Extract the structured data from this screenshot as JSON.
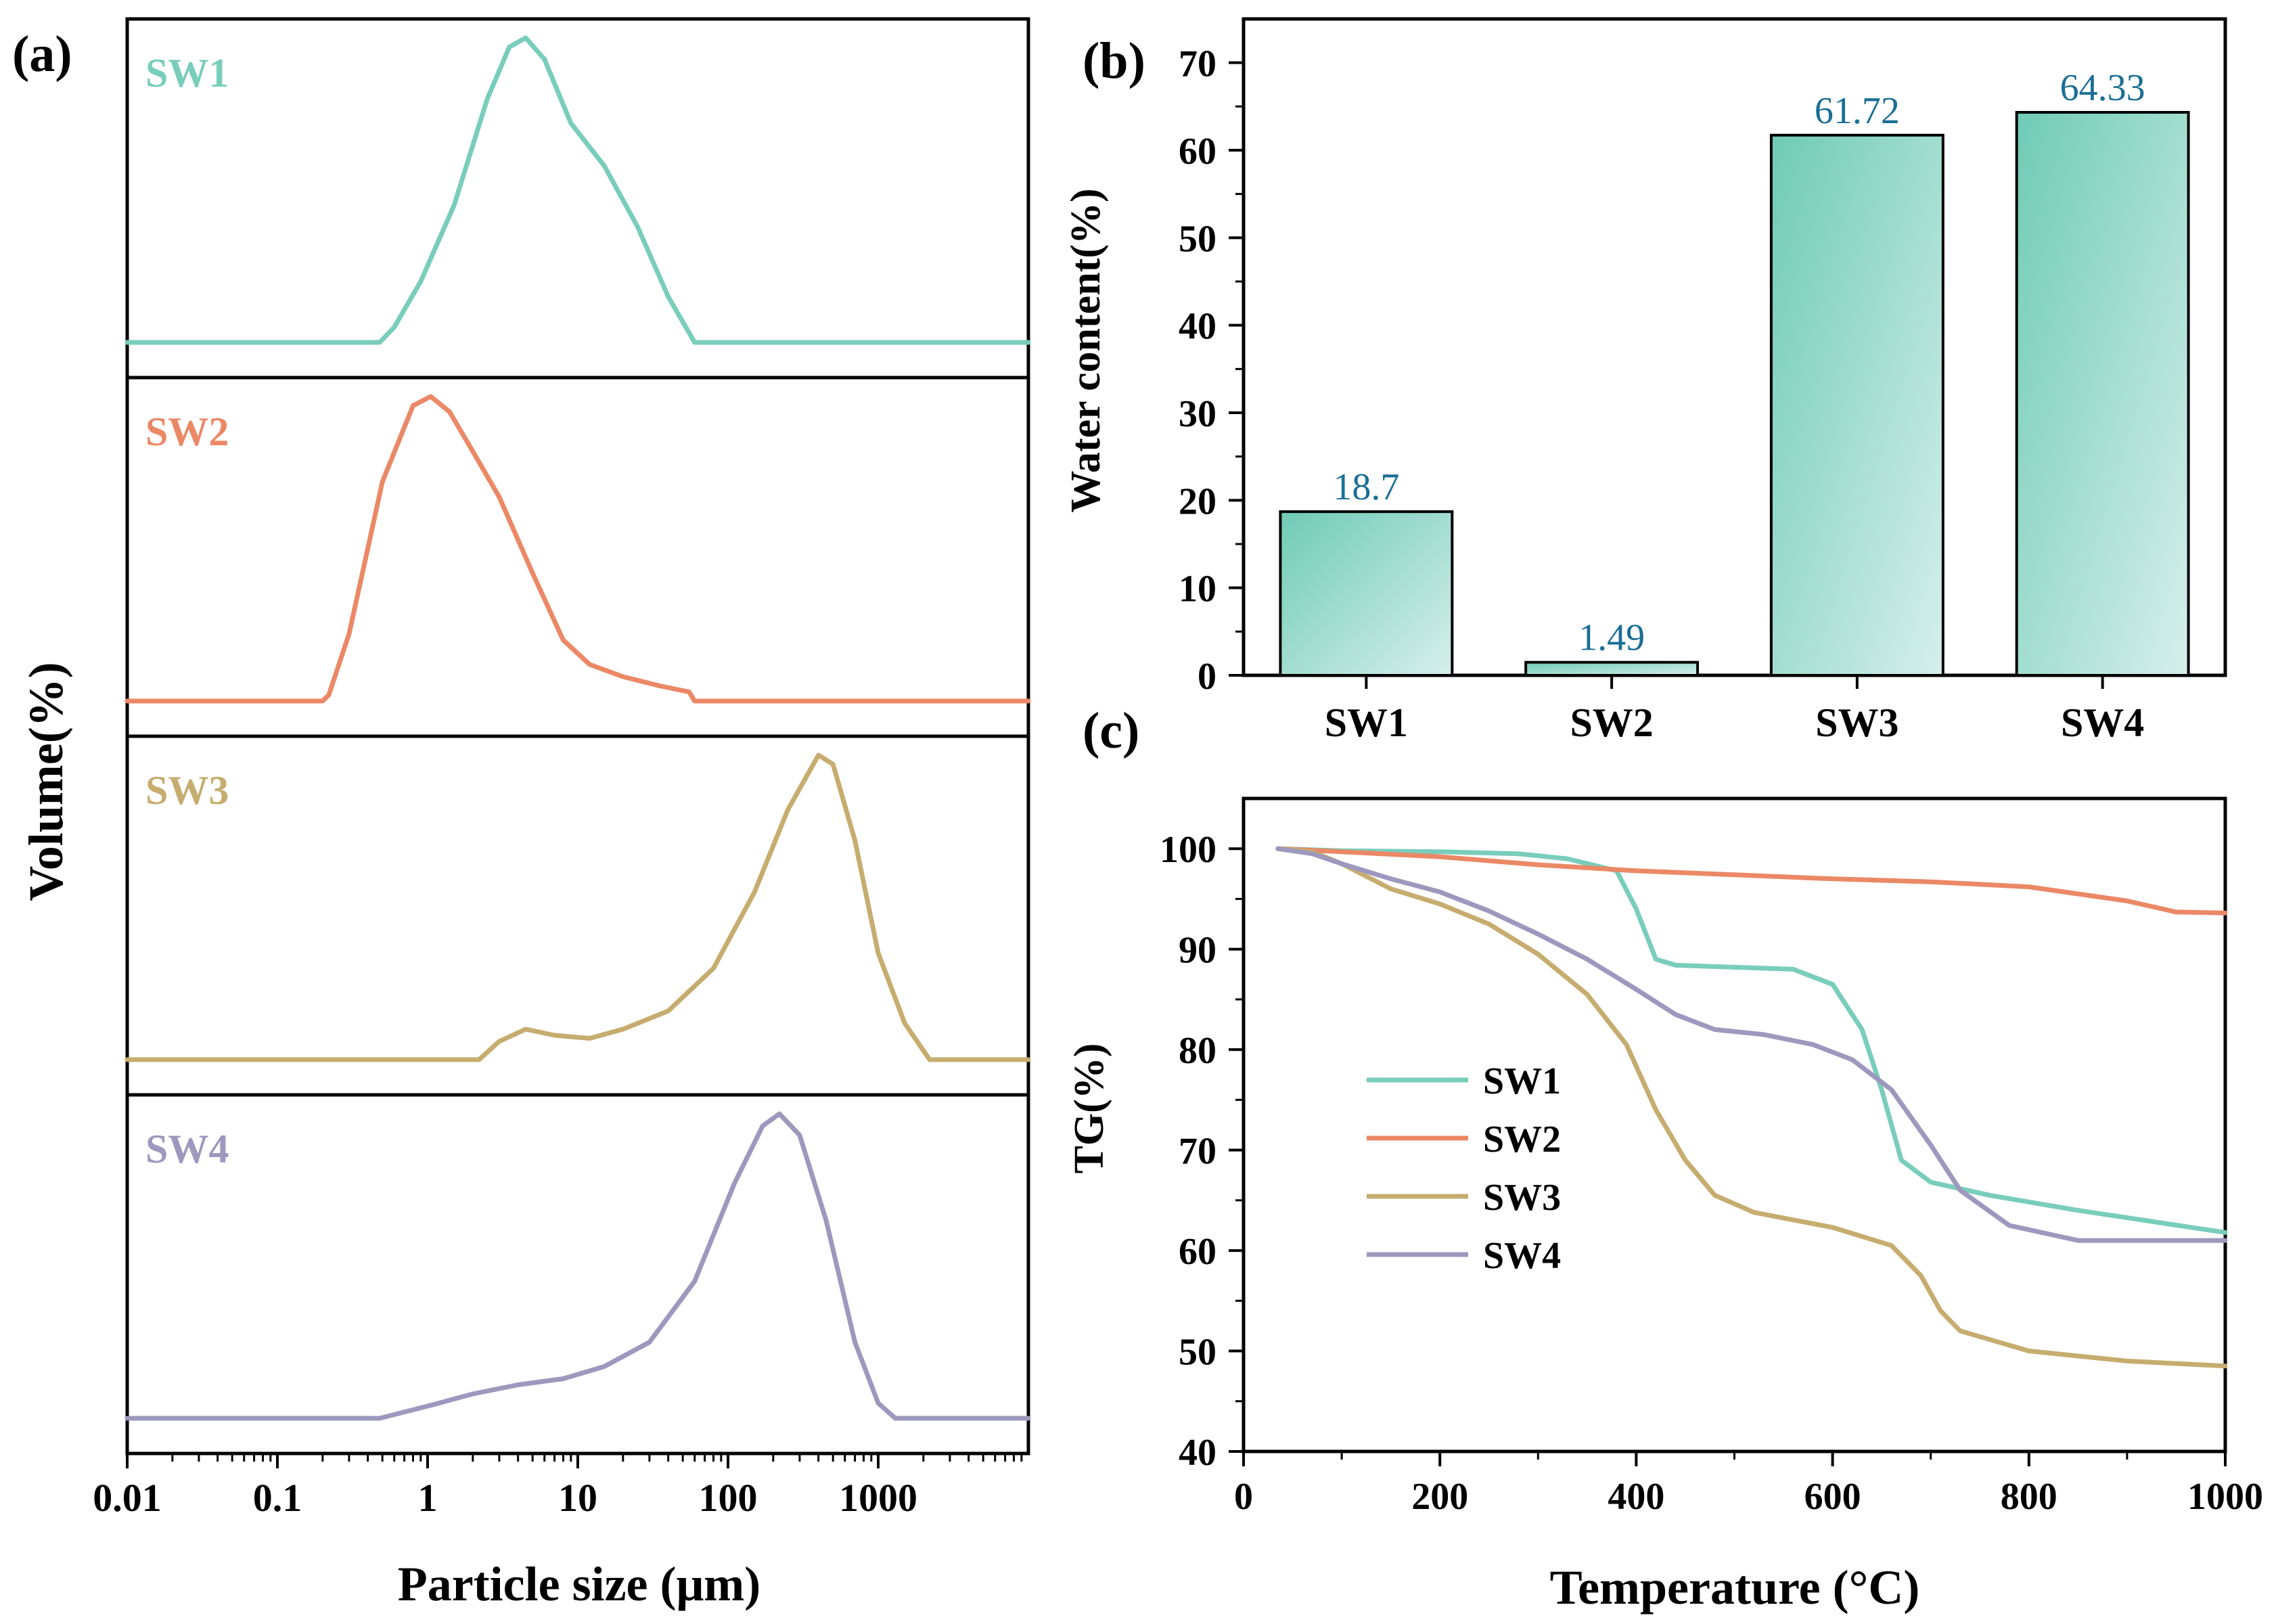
{
  "colors": {
    "sw1": "#79cdbb",
    "sw2": "#eb8866",
    "sw3": "#c6ad6f",
    "sw4": "#9d98bd",
    "bar_label": "#1a6e96",
    "bar_dark": "#6fcbb5",
    "bar_light": "#d6efec"
  },
  "chart_data": [
    {
      "panel": "(a)",
      "type": "line",
      "title": "",
      "xlabel": "Particle size (μm)",
      "ylabel": "Volume(%)",
      "xscale": "log",
      "xlim": [
        0.01,
        10000
      ],
      "xticks": [
        0.01,
        0.1,
        1,
        10,
        100,
        1000
      ],
      "xtick_labels": [
        "0.01",
        "0.1",
        "1",
        "10",
        "100",
        "1000"
      ],
      "stacked_panels": true,
      "series": [
        {
          "name": "SW1",
          "x": [
            0.01,
            0.48,
            0.6,
            0.9,
            1.5,
            2.5,
            3.5,
            4.5,
            6,
            9,
            15,
            25,
            40,
            60,
            10000
          ],
          "y": [
            0,
            0,
            0.05,
            0.2,
            0.45,
            0.8,
            0.97,
            1.0,
            0.93,
            0.72,
            0.58,
            0.38,
            0.15,
            0,
            0
          ]
        },
        {
          "name": "SW2",
          "x": [
            0.01,
            0.2,
            0.22,
            0.3,
            0.5,
            0.8,
            1.05,
            1.4,
            2,
            3,
            5,
            8,
            12,
            20,
            35,
            55,
            60,
            10000
          ],
          "y": [
            0,
            0,
            0.02,
            0.22,
            0.72,
            0.97,
            1.0,
            0.95,
            0.82,
            0.67,
            0.42,
            0.2,
            0.12,
            0.08,
            0.05,
            0.03,
            0,
            0
          ]
        },
        {
          "name": "SW3",
          "x": [
            0.01,
            2.2,
            3,
            4.5,
            7,
            12,
            20,
            40,
            80,
            150,
            250,
            400,
            500,
            700,
            1000,
            1500,
            2200,
            10000
          ],
          "y": [
            0,
            0,
            0.06,
            0.1,
            0.08,
            0.07,
            0.1,
            0.16,
            0.3,
            0.55,
            0.82,
            1.0,
            0.97,
            0.72,
            0.35,
            0.12,
            0,
            0
          ]
        },
        {
          "name": "SW4",
          "x": [
            0.01,
            0.48,
            1,
            2,
            4,
            8,
            15,
            30,
            60,
            110,
            170,
            220,
            300,
            450,
            700,
            1000,
            1300,
            10000
          ],
          "y": [
            0,
            0,
            0.04,
            0.08,
            0.11,
            0.13,
            0.17,
            0.25,
            0.45,
            0.77,
            0.96,
            1.0,
            0.93,
            0.65,
            0.25,
            0.05,
            0,
            0
          ]
        }
      ]
    },
    {
      "panel": "(b)",
      "type": "bar",
      "title": "",
      "xlabel": "",
      "ylabel": "Water content(%)",
      "ylim": [
        0,
        75
      ],
      "yticks": [
        0,
        10,
        20,
        30,
        40,
        50,
        60,
        70
      ],
      "categories": [
        "SW1",
        "SW2",
        "SW3",
        "SW4"
      ],
      "values": [
        18.7,
        1.49,
        61.72,
        64.33
      ],
      "value_labels": [
        "18.7",
        "1.49",
        "61.72",
        "64.33"
      ]
    },
    {
      "panel": "(c)",
      "type": "line",
      "title": "",
      "xlabel": "Temperature (°C)",
      "ylabel": "TG(%)",
      "xlim": [
        0,
        1000
      ],
      "ylim": [
        40,
        105
      ],
      "xticks": [
        0,
        200,
        400,
        600,
        800,
        1000
      ],
      "yticks": [
        40,
        50,
        60,
        70,
        80,
        90,
        100
      ],
      "legend_position": "center-left",
      "series": [
        {
          "name": "SW1",
          "x": [
            35,
            100,
            200,
            280,
            330,
            380,
            400,
            420,
            440,
            500,
            560,
            600,
            630,
            650,
            670,
            700,
            760,
            850,
            1000
          ],
          "y": [
            100,
            99.8,
            99.7,
            99.5,
            99,
            97.8,
            94,
            89,
            88.4,
            88.2,
            88,
            86.5,
            82,
            76,
            69,
            66.8,
            65.5,
            64,
            61.8
          ]
        },
        {
          "name": "SW2",
          "x": [
            35,
            100,
            200,
            300,
            400,
            500,
            600,
            700,
            800,
            900,
            950,
            1000
          ],
          "y": [
            100,
            99.7,
            99.2,
            98.4,
            97.8,
            97.4,
            97,
            96.7,
            96.2,
            94.8,
            93.7,
            93.6
          ]
        },
        {
          "name": "SW3",
          "x": [
            35,
            70,
            100,
            150,
            200,
            250,
            300,
            350,
            390,
            420,
            450,
            480,
            520,
            600,
            660,
            690,
            710,
            730,
            800,
            900,
            1000
          ],
          "y": [
            100,
            99.7,
            98.5,
            96,
            94.5,
            92.5,
            89.5,
            85.5,
            80.5,
            74,
            69,
            65.5,
            63.8,
            62.3,
            60.5,
            57.5,
            54,
            52,
            50,
            49,
            48.5
          ]
        },
        {
          "name": "SW4",
          "x": [
            35,
            70,
            100,
            150,
            200,
            250,
            300,
            350,
            400,
            440,
            480,
            530,
            580,
            620,
            660,
            700,
            730,
            780,
            850,
            1000
          ],
          "y": [
            100,
            99.5,
            98.5,
            97,
            95.7,
            93.8,
            91.5,
            89,
            86,
            83.5,
            82,
            81.5,
            80.5,
            79,
            76,
            70.5,
            66,
            62.5,
            61,
            61
          ]
        }
      ]
    }
  ]
}
